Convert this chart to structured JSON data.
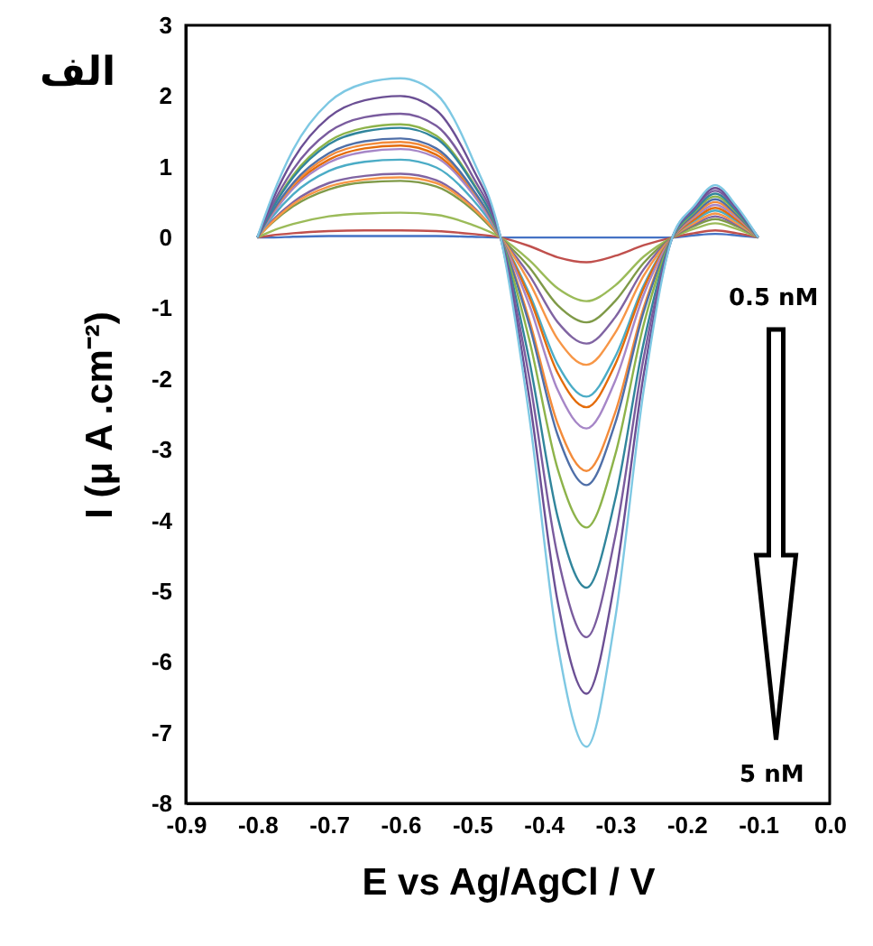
{
  "chart_data": {
    "type": "line",
    "xlabel": "E vs Ag/AgCl / V",
    "ylabel": "I (μ A .cm⁻²)",
    "annotations": [
      "الف",
      "0.5 nM",
      "5 nM"
    ],
    "x": [
      -0.8,
      -0.78,
      -0.75,
      -0.7,
      -0.65,
      -0.6,
      -0.55,
      -0.5,
      -0.46,
      -0.42,
      -0.38,
      -0.34,
      -0.3,
      -0.26,
      -0.22,
      -0.19,
      -0.16,
      -0.13,
      -0.1
    ],
    "series": [
      {
        "color": "#4472c4",
        "values": [
          0,
          0,
          0.01,
          0.02,
          0.02,
          0.02,
          0.02,
          0.01,
          0,
          0,
          0,
          0,
          0,
          0,
          0,
          0.03,
          0.05,
          0.03,
          0
        ]
      },
      {
        "color": "#c0504d",
        "values": [
          0,
          0.03,
          0.06,
          0.09,
          0.1,
          0.1,
          0.09,
          0.05,
          0,
          -0.12,
          -0.28,
          -0.35,
          -0.26,
          -0.11,
          0,
          0.06,
          0.1,
          0.06,
          0
        ]
      },
      {
        "color": "#9bbb59",
        "values": [
          0,
          0.09,
          0.19,
          0.3,
          0.34,
          0.35,
          0.32,
          0.18,
          0,
          -0.32,
          -0.72,
          -0.9,
          -0.68,
          -0.27,
          0,
          0.12,
          0.2,
          0.12,
          0
        ]
      },
      {
        "color": "#7f9a48",
        "values": [
          0,
          0.2,
          0.44,
          0.68,
          0.78,
          0.8,
          0.72,
          0.4,
          0,
          -0.42,
          -0.96,
          -1.2,
          -0.9,
          -0.36,
          0,
          0.16,
          0.26,
          0.16,
          0
        ]
      },
      {
        "color": "#8064a2",
        "values": [
          0,
          0.23,
          0.5,
          0.77,
          0.87,
          0.9,
          0.81,
          0.45,
          0,
          -0.53,
          -1.2,
          -1.5,
          -1.13,
          -0.45,
          0,
          0.18,
          0.3,
          0.18,
          0
        ]
      },
      {
        "color": "#f79646",
        "values": [
          0,
          0.21,
          0.47,
          0.72,
          0.82,
          0.85,
          0.77,
          0.43,
          0,
          -0.63,
          -1.44,
          -1.8,
          -1.35,
          -0.54,
          0,
          0.2,
          0.34,
          0.2,
          0
        ]
      },
      {
        "color": "#4bacc6",
        "values": [
          0,
          0.28,
          0.61,
          0.94,
          1.07,
          1.1,
          0.99,
          0.55,
          0,
          -0.79,
          -1.8,
          -2.25,
          -1.69,
          -0.68,
          0,
          0.23,
          0.38,
          0.23,
          0
        ]
      },
      {
        "color": "#e46c0a",
        "values": [
          0,
          0.33,
          0.72,
          1.1,
          1.26,
          1.3,
          1.17,
          0.65,
          0,
          -0.84,
          -1.92,
          -2.4,
          -1.8,
          -0.72,
          0,
          0.25,
          0.42,
          0.25,
          0
        ]
      },
      {
        "color": "#a686c7",
        "values": [
          0,
          0.31,
          0.69,
          1.06,
          1.21,
          1.25,
          1.13,
          0.63,
          0,
          -0.95,
          -2.16,
          -2.7,
          -2.03,
          -0.81,
          0,
          0.28,
          0.46,
          0.28,
          0
        ]
      },
      {
        "color": "#f38b3a",
        "values": [
          0,
          0.34,
          0.74,
          1.15,
          1.31,
          1.35,
          1.22,
          0.68,
          0,
          -1.16,
          -2.64,
          -3.3,
          -2.48,
          -0.99,
          0,
          0.3,
          0.5,
          0.3,
          0
        ]
      },
      {
        "color": "#4f6fa8",
        "values": [
          0,
          0.35,
          0.77,
          1.19,
          1.36,
          1.4,
          1.26,
          0.7,
          0,
          -1.23,
          -2.8,
          -3.5,
          -2.63,
          -1.05,
          0,
          0.32,
          0.54,
          0.32,
          0
        ]
      },
      {
        "color": "#8db34a",
        "values": [
          0,
          0.4,
          0.88,
          1.36,
          1.55,
          1.6,
          1.44,
          0.8,
          0,
          -1.44,
          -3.28,
          -4.1,
          -3.08,
          -1.23,
          0,
          0.35,
          0.58,
          0.35,
          0
        ]
      },
      {
        "color": "#31859c",
        "values": [
          0,
          0.39,
          0.85,
          1.32,
          1.5,
          1.55,
          1.4,
          0.78,
          0,
          -1.73,
          -3.96,
          -4.95,
          -3.71,
          -1.49,
          0,
          0.37,
          0.62,
          0.37,
          0
        ]
      },
      {
        "color": "#7a5c9e",
        "values": [
          0,
          0.44,
          0.96,
          1.49,
          1.7,
          1.75,
          1.58,
          0.88,
          0,
          -1.98,
          -4.52,
          -5.65,
          -4.24,
          -1.7,
          0,
          0.4,
          0.66,
          0.4,
          0
        ]
      },
      {
        "color": "#6b4f94",
        "values": [
          0,
          0.5,
          1.1,
          1.7,
          1.94,
          2.0,
          1.8,
          1.0,
          0,
          -2.26,
          -5.16,
          -6.45,
          -4.84,
          -1.94,
          0,
          0.42,
          0.7,
          0.42,
          0
        ]
      },
      {
        "color": "#7ec8e3",
        "values": [
          0,
          0.56,
          1.24,
          1.91,
          2.18,
          2.25,
          2.03,
          1.13,
          0,
          -2.52,
          -5.76,
          -7.2,
          -5.4,
          -2.16,
          0,
          0.44,
          0.74,
          0.44,
          0
        ]
      }
    ],
    "xlim": [
      -0.9,
      0.0
    ],
    "xticks": [
      -0.9,
      -0.8,
      -0.7,
      -0.6,
      -0.5,
      -0.4,
      -0.3,
      -0.2,
      -0.1,
      {
        "value": 0,
        "label": "0.0"
      }
    ],
    "ylim": [
      -8,
      3
    ],
    "yticks": [
      -8,
      -7,
      -6,
      -5,
      -4,
      -3,
      -2,
      -1,
      0,
      1,
      2,
      3
    ],
    "grid": false,
    "marker": "none",
    "line_style": "solid"
  }
}
